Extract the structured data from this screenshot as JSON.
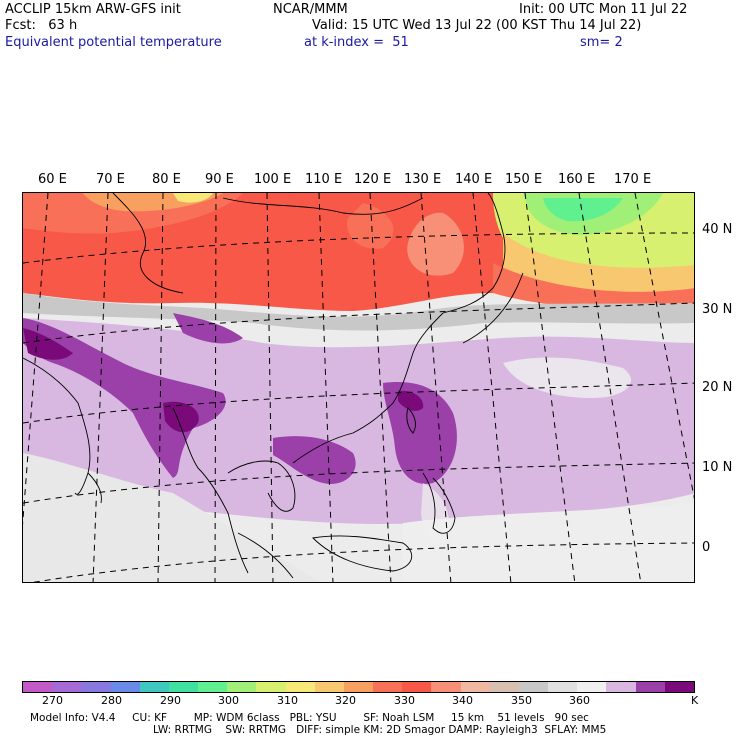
{
  "header": {
    "line1_left": "ACCLIP 15km ARW-GFS init",
    "line1_center": "NCAR/MMM",
    "line1_right": "Init: 00 UTC Mon 11 Jul 22",
    "line2_left": "Fcst:   63 h",
    "line2_right": "Valid: 15 UTC Wed 13 Jul 22 (00 KST Thu 14 Jul 22)",
    "line3_left": "Equivalent potential temperature",
    "line3_center": "at k-index =  51",
    "line3_right": "sm= 2"
  },
  "map": {
    "lon_labels": [
      "60 E",
      "70 E",
      "80 E",
      "90 E",
      "100 E",
      "110 E",
      "120 E",
      "130 E",
      "140 E",
      "150 E",
      "160 E",
      "170 E"
    ],
    "lat_labels": [
      "40 N",
      "30 N",
      "20 N",
      "10 N",
      "0"
    ]
  },
  "colorbar": {
    "colors": [
      "#c45ac8",
      "#a66ad6",
      "#8878e0",
      "#6a8ae8",
      "#40c8c0",
      "#40e0a0",
      "#60f090",
      "#a0f078",
      "#d8f070",
      "#f8e878",
      "#f8c870",
      "#f8a060",
      "#f87058",
      "#f85848",
      "#f89078",
      "#f0b8a0",
      "#d8c0b0",
      "#c8c8c8",
      "#e0e0e0",
      "#f0f0f0",
      "#d8b8e0",
      "#9a40a8",
      "#7a0a7a"
    ],
    "labels": [
      "270",
      "280",
      "290",
      "300",
      "310",
      "320",
      "330",
      "340",
      "350",
      "360"
    ],
    "unit": "K"
  },
  "footer": {
    "line1": "Model Info: V4.4     CU: KF        MP: WDM 6class   PBL: YSU        SF: Noah LSM     15 km    51 levels   90 sec",
    "line2": "LW: RRTMG    SW: RRTMG   DIFF: simple KM: 2D Smagor DAMP: Rayleigh3  SFLAY: MM5"
  }
}
